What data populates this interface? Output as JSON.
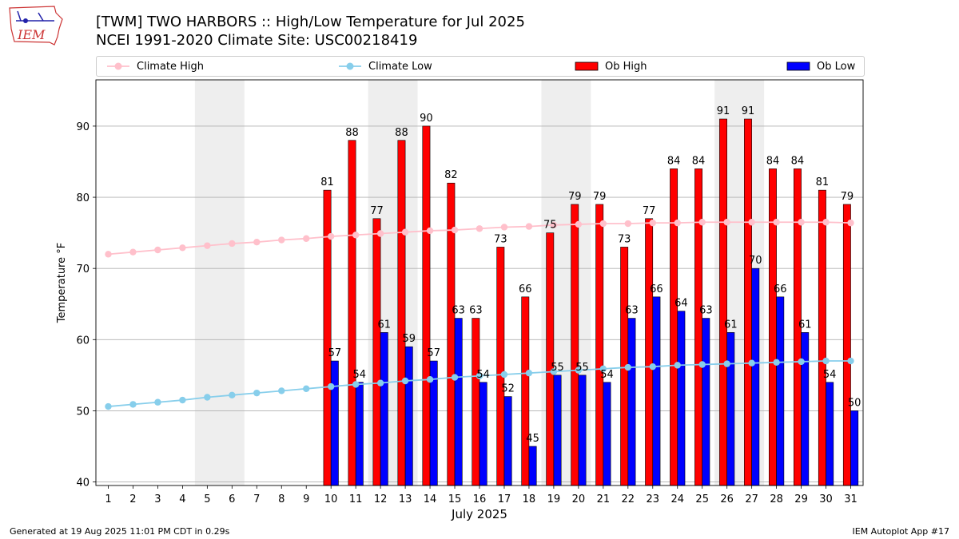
{
  "header": {
    "title_line1": "[TWM] TWO HARBORS :: High/Low Temperature for Jul 2025",
    "title_line2": "NCEI 1991-2020 Climate Site: USC00218419"
  },
  "logo": {
    "text": "IEM",
    "icon": "iowa-map-weather-station-logo"
  },
  "footer": {
    "left": "Generated at 19 Aug 2025 11:01 PM CDT in 0.29s",
    "right": "IEM Autoplot App #17"
  },
  "legend": {
    "climate_high": "Climate High",
    "climate_low": "Climate Low",
    "ob_high": "Ob High",
    "ob_low": "Ob Low"
  },
  "colors": {
    "climate_high": "#ffc0cb",
    "climate_low": "#87ceeb",
    "ob_high": "#ff0000",
    "ob_low": "#0000ff",
    "weekend_shade": "#eeeeee",
    "grid": "#b0b0b0"
  },
  "chart_data": {
    "type": "bar",
    "xlabel": "July 2025",
    "ylabel": "Temperature °F",
    "ylim": [
      39.5,
      96.5
    ],
    "yticks": [
      40,
      50,
      60,
      70,
      80,
      90
    ],
    "grid": "horizontal",
    "legend_position": "top",
    "categories": [
      "1",
      "2",
      "3",
      "4",
      "5",
      "6",
      "7",
      "8",
      "9",
      "10",
      "11",
      "12",
      "13",
      "14",
      "15",
      "16",
      "17",
      "18",
      "19",
      "20",
      "21",
      "22",
      "23",
      "24",
      "25",
      "26",
      "27",
      "28",
      "29",
      "30",
      "31"
    ],
    "shaded_days": [
      [
        5,
        6
      ],
      [
        12,
        13
      ],
      [
        19,
        20
      ],
      [
        26,
        27
      ]
    ],
    "series": [
      {
        "name": "Climate High",
        "kind": "line",
        "values": [
          72.0,
          72.3,
          72.6,
          72.9,
          73.2,
          73.5,
          73.7,
          74.0,
          74.2,
          74.5,
          74.7,
          74.9,
          75.1,
          75.3,
          75.4,
          75.6,
          75.8,
          75.9,
          76.1,
          76.2,
          76.3,
          76.3,
          76.4,
          76.4,
          76.5,
          76.5,
          76.5,
          76.5,
          76.5,
          76.5,
          76.4
        ]
      },
      {
        "name": "Climate Low",
        "kind": "line",
        "values": [
          50.6,
          50.9,
          51.2,
          51.5,
          51.9,
          52.2,
          52.5,
          52.8,
          53.1,
          53.4,
          53.7,
          53.9,
          54.2,
          54.4,
          54.7,
          54.9,
          55.1,
          55.3,
          55.5,
          55.7,
          55.9,
          56.1,
          56.2,
          56.4,
          56.5,
          56.6,
          56.7,
          56.8,
          56.9,
          57.0,
          57.0
        ]
      },
      {
        "name": "Ob High",
        "kind": "bar",
        "values": [
          null,
          null,
          null,
          null,
          null,
          null,
          null,
          null,
          null,
          81,
          88,
          77,
          88,
          90,
          82,
          63,
          73,
          66,
          75,
          79,
          79,
          73,
          77,
          84,
          84,
          91,
          91,
          84,
          84,
          81,
          79
        ]
      },
      {
        "name": "Ob Low",
        "kind": "bar",
        "values": [
          null,
          null,
          null,
          null,
          null,
          null,
          null,
          null,
          null,
          57,
          54,
          61,
          59,
          57,
          63,
          54,
          52,
          45,
          55,
          55,
          54,
          63,
          66,
          64,
          63,
          61,
          70,
          66,
          61,
          54,
          50
        ]
      }
    ]
  }
}
